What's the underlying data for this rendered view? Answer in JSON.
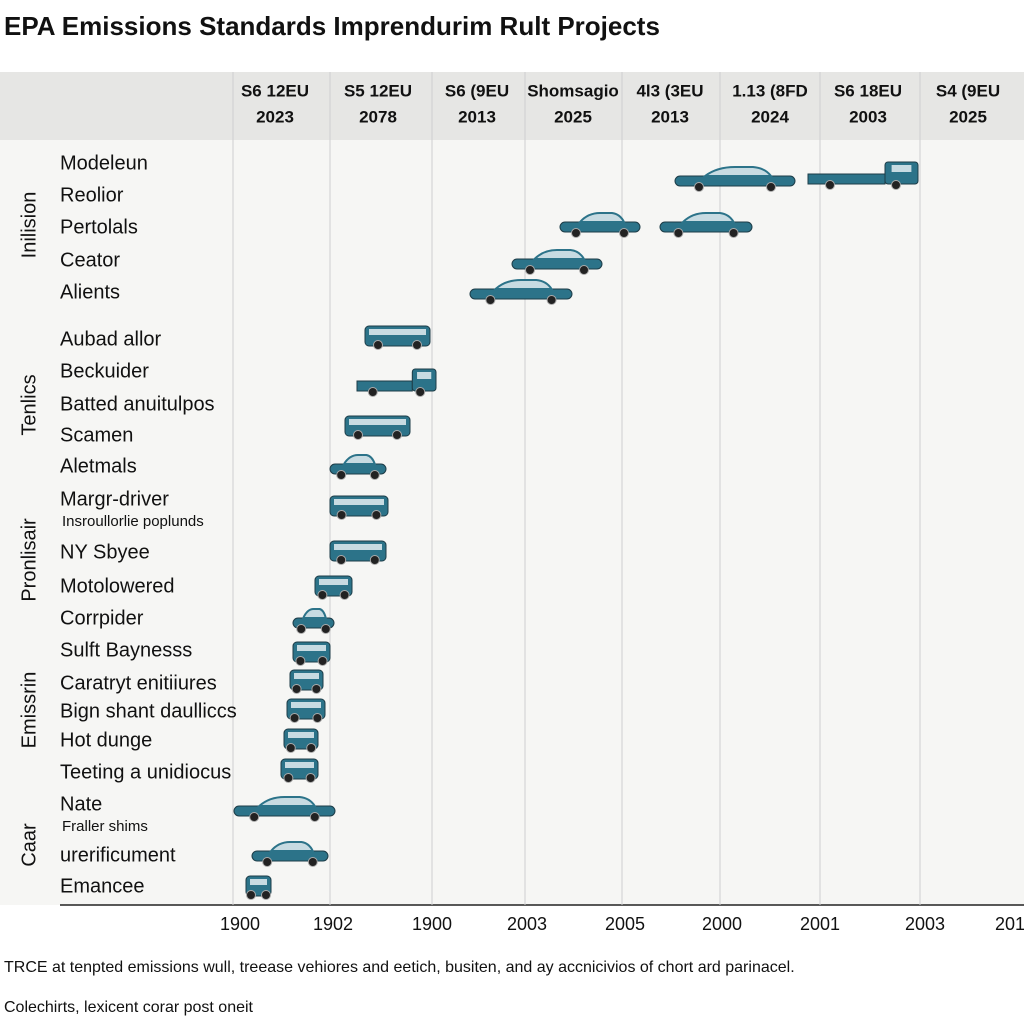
{
  "title": "EPA Emissions Standards Imprendurim Rult Projects",
  "header": {
    "columns": [
      {
        "line1": "S6 12EU",
        "line2": "2023"
      },
      {
        "line1": "S5 12EU",
        "line2": "2078"
      },
      {
        "line1": "S6 (9EU",
        "line2": "2013"
      },
      {
        "line1": "Shomsagio",
        "line2": "2025"
      },
      {
        "line1": "4l3 (3EU",
        "line2": "2013"
      },
      {
        "line1": "1.13 (8FD",
        "line2": "2024"
      },
      {
        "line1": "S6 18EU",
        "line2": "2003"
      },
      {
        "line1": "S4 (9EU",
        "line2": "2025"
      }
    ]
  },
  "groups": [
    {
      "label": "Inilision",
      "rows": [
        {
          "label": "Modeleun"
        },
        {
          "label": "Reolior"
        },
        {
          "label": "Pertolals"
        },
        {
          "label": "Ceator"
        },
        {
          "label": "Alients"
        }
      ]
    },
    {
      "label": "Tenlics",
      "rows": [
        {
          "label": "Aubad allor"
        },
        {
          "label": "Beckuider"
        },
        {
          "label": "Batted anuitulpos"
        },
        {
          "label": "Scamen"
        },
        {
          "label": "Aletmals"
        }
      ]
    },
    {
      "label": "Pronlisair",
      "rows": [
        {
          "label": "Margr-driver",
          "sublabel": "Insroullorlie poplunds"
        },
        {
          "label": "NY Sbyee"
        },
        {
          "label": "Motolowered"
        },
        {
          "label": "Corrpider"
        }
      ]
    },
    {
      "label": "Emissrin",
      "rows": [
        {
          "label": "Sulft Baynesss"
        },
        {
          "label": "Caratryt enitiiures"
        },
        {
          "label": "Bign shant daulliccs"
        },
        {
          "label": "Hot dunge"
        },
        {
          "label": "Teeting a unidiocus"
        }
      ]
    },
    {
      "label": "Caar",
      "rows": [
        {
          "label": "Nate",
          "sublabel": "Fraller shims"
        },
        {
          "label": "urerificument"
        },
        {
          "label": "Emancee"
        }
      ]
    }
  ],
  "x_axis": {
    "labels": [
      "1900",
      "1902",
      "1900",
      "2003",
      "2005",
      "2000",
      "2001",
      "2003",
      "201"
    ]
  },
  "footnotes": [
    "TRCE at tenpted emissions wull, treease vehiores and eetich, busiten, and ay accnicivios of chort ard parinacel.",
    "Colechirts, lexicent corar post oneit"
  ]
}
